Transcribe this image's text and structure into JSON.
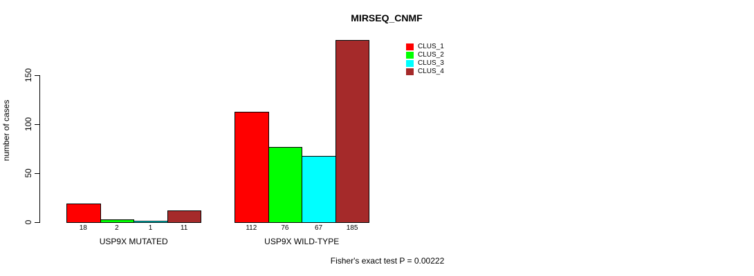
{
  "chart_data": {
    "type": "bar",
    "title": "MIRSEQ_CNMF",
    "ylabel": "number of cases",
    "xlabel": "",
    "ylim": [
      0,
      150
    ],
    "yticks": [
      0,
      50,
      100,
      150
    ],
    "grid": false,
    "legend_position": "top-right",
    "categories": [
      "USP9X MUTATED",
      "USP9X WILD-TYPE"
    ],
    "series": [
      {
        "name": "CLUS_1",
        "color": "#ff0000",
        "values": [
          18,
          112
        ]
      },
      {
        "name": "CLUS_2",
        "color": "#00ff00",
        "values": [
          2,
          76
        ]
      },
      {
        "name": "CLUS_3",
        "color": "#00ffff",
        "values": [
          1,
          67
        ]
      },
      {
        "name": "CLUS_4",
        "color": "#a52a2a",
        "values": [
          11,
          185
        ]
      }
    ],
    "show_bar_value_labels": true,
    "annotation": "Fisher's exact test P = 0.00222"
  },
  "colors": {
    "background": "#ffffff",
    "axis": "#000000",
    "bar_border": "#000000",
    "text": "#000000"
  }
}
